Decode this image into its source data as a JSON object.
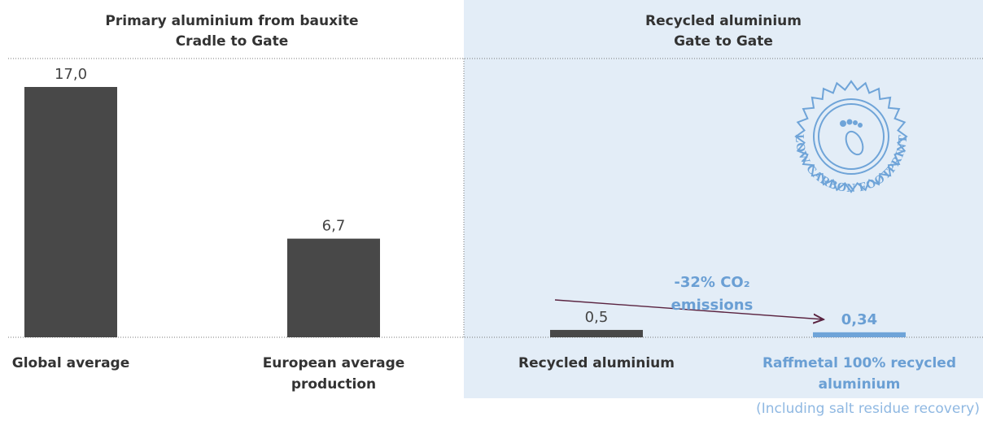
{
  "chart_data": {
    "type": "bar",
    "groups": [
      {
        "title": [
          "Primary aluminium from bauxite",
          "Cradle to Gate"
        ]
      },
      {
        "title": [
          "Recycled aluminium",
          "Gate to Gate"
        ]
      }
    ],
    "categories": [
      "Global average",
      "European average production",
      "Recycled aluminium",
      "Raffmetal 100% recycled aluminium"
    ],
    "values": [
      17.0,
      6.7,
      0.5,
      0.34
    ],
    "value_labels": [
      "17,0",
      "6,7",
      "0,5",
      "0,34"
    ],
    "colors": [
      "#484848",
      "#484848",
      "#484848",
      "#6fa4d8"
    ],
    "note": "(Including salt residue recovery)",
    "annotation": "-32% CO₂ emissions",
    "badge": "LOW CARBON FOOTPRINT"
  }
}
